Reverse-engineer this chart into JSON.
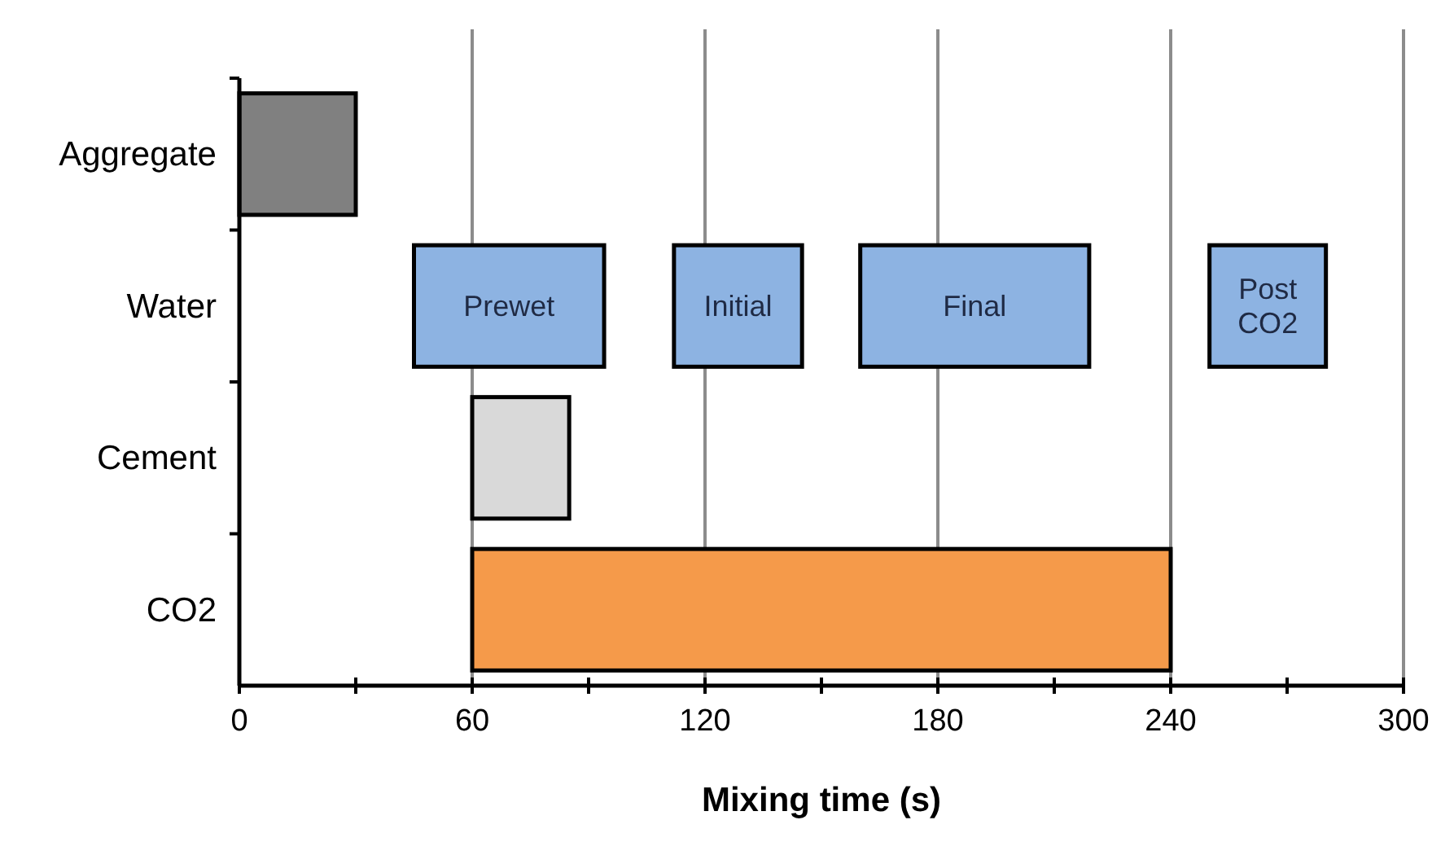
{
  "chart_data": {
    "type": "bar",
    "orientation": "horizontal",
    "categories": [
      "Aggregate",
      "Water",
      "Cement",
      "CO2"
    ],
    "xlabel": "Mixing time (s)",
    "xlim": [
      0,
      300
    ],
    "xticks": [
      0,
      {
        "value": 30,
        "label": null
      },
      60,
      {
        "value": 90,
        "label": null
      },
      120,
      {
        "value": 150,
        "label": null
      },
      180,
      {
        "value": 210,
        "label": null
      },
      240,
      {
        "value": 270,
        "label": null
      },
      300
    ],
    "grid": "x",
    "series": [
      {
        "base": [
          0,
          45,
          60,
          60
        ],
        "values": [
          30,
          49,
          25,
          180
        ],
        "colors": [
          "#808080",
          "#8db3e2",
          "#d9d9d9",
          "#f59a4a"
        ],
        "value_labels": [
          null,
          "Prewet",
          null,
          null
        ]
      },
      {
        "base": [
          null,
          112,
          null,
          null
        ],
        "values": [
          null,
          33,
          null,
          null
        ],
        "color": "#8db3e2",
        "value_labels": [
          null,
          "Initial",
          null,
          null
        ]
      },
      {
        "base": [
          null,
          160,
          null,
          null
        ],
        "values": [
          null,
          59,
          null,
          null
        ],
        "color": "#8db3e2",
        "value_labels": [
          null,
          "Final",
          null,
          null
        ]
      },
      {
        "base": [
          null,
          250,
          null,
          null
        ],
        "values": [
          null,
          30,
          null,
          null
        ],
        "color": "#8db3e2",
        "value_labels": [
          null,
          "Post CO2",
          null,
          null
        ]
      }
    ]
  }
}
